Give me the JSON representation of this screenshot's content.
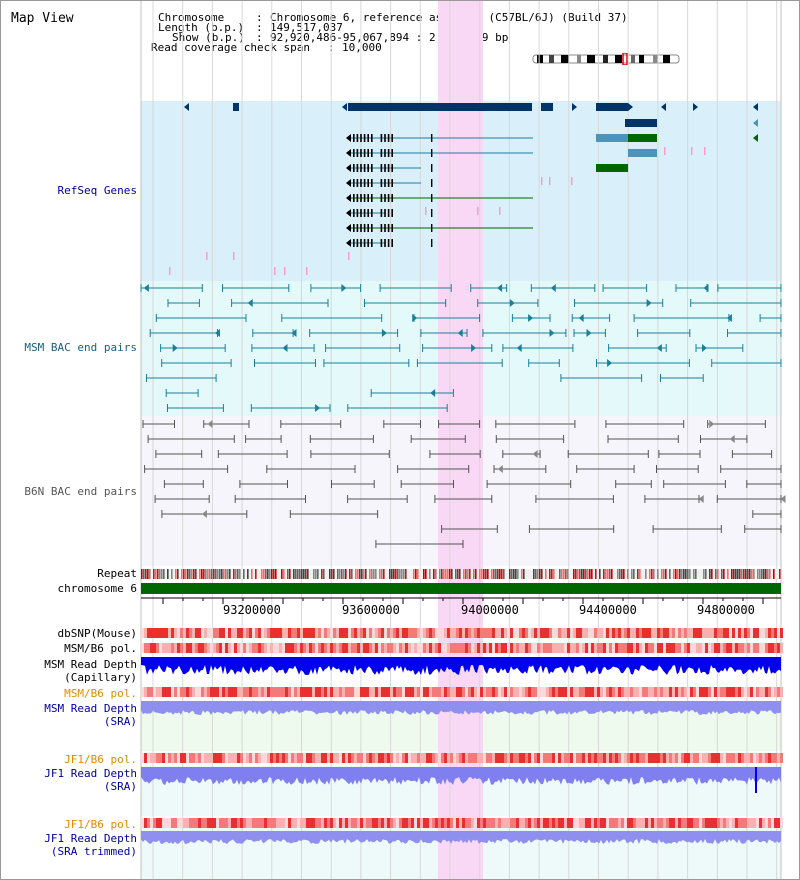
{
  "page": {
    "title": "Map View"
  },
  "header": {
    "chromosome_label": "Chromosome",
    "chromosome_value": "Chromosome 6, reference assembly (C57BL/6J) (Build 37)",
    "length_label": "Length (b.p.)",
    "length_value": "149,517,037",
    "show_label": "Show (b.p.)",
    "show_value": "92,920,486-95,067,894 : 2,147,409 bp",
    "coverage_label": "Read coverage check span",
    "coverage_value": "10,000"
  },
  "tracks": {
    "refseq": "RefSeq Genes",
    "msm_bac": "MSM BAC end pairs",
    "b6n_bac": "B6N BAC end pairs",
    "repeat": "Repeat",
    "chromosome": "chromosome 6",
    "dbsnp": "dbSNP(Mouse)",
    "msm_b6_pol": "MSM/B6 pol.",
    "msm_read_depth_cap_1": "MSM Read Depth",
    "msm_read_depth_cap_2": "(Capillary)",
    "msm_b6_pol_2": "MSM/B6 pol.",
    "msm_read_depth_sra_1": "MSM Read Depth",
    "msm_read_depth_sra_2": "(SRA)",
    "jf1_b6_pol": "JF1/B6 pol.",
    "jf1_read_depth_sra_1": "JF1 Read Depth",
    "jf1_read_depth_sra_2": "(SRA)",
    "jf1_b6_pol_2": "JF1/B6 pol.",
    "jf1_read_depth_trim_1": "JF1 Read Depth",
    "jf1_read_depth_trim_2": "(SRA trimmed)"
  },
  "axis": {
    "ticks": [
      "93200000",
      "93600000",
      "94000000",
      "94400000",
      "94800000"
    ]
  },
  "colors": {
    "refseq_bg": "#d9effa",
    "bac_bg": "#e4f9f9",
    "b6n_bg": "#f5f5fb",
    "highlight": "#f8d8f4",
    "gene_dark": "#003366",
    "gene_green": "#006600",
    "gene_mid": "#4f94b8",
    "msm_color": "#1a7f9a",
    "b6n_color": "#555555",
    "depth_dark": "#0000ee",
    "depth_light": "#7f7ff0",
    "pol_red": "#e83030",
    "label_blue": "#00009a",
    "label_orange": "#e08c00",
    "label_msm": "#1a6080"
  }
}
